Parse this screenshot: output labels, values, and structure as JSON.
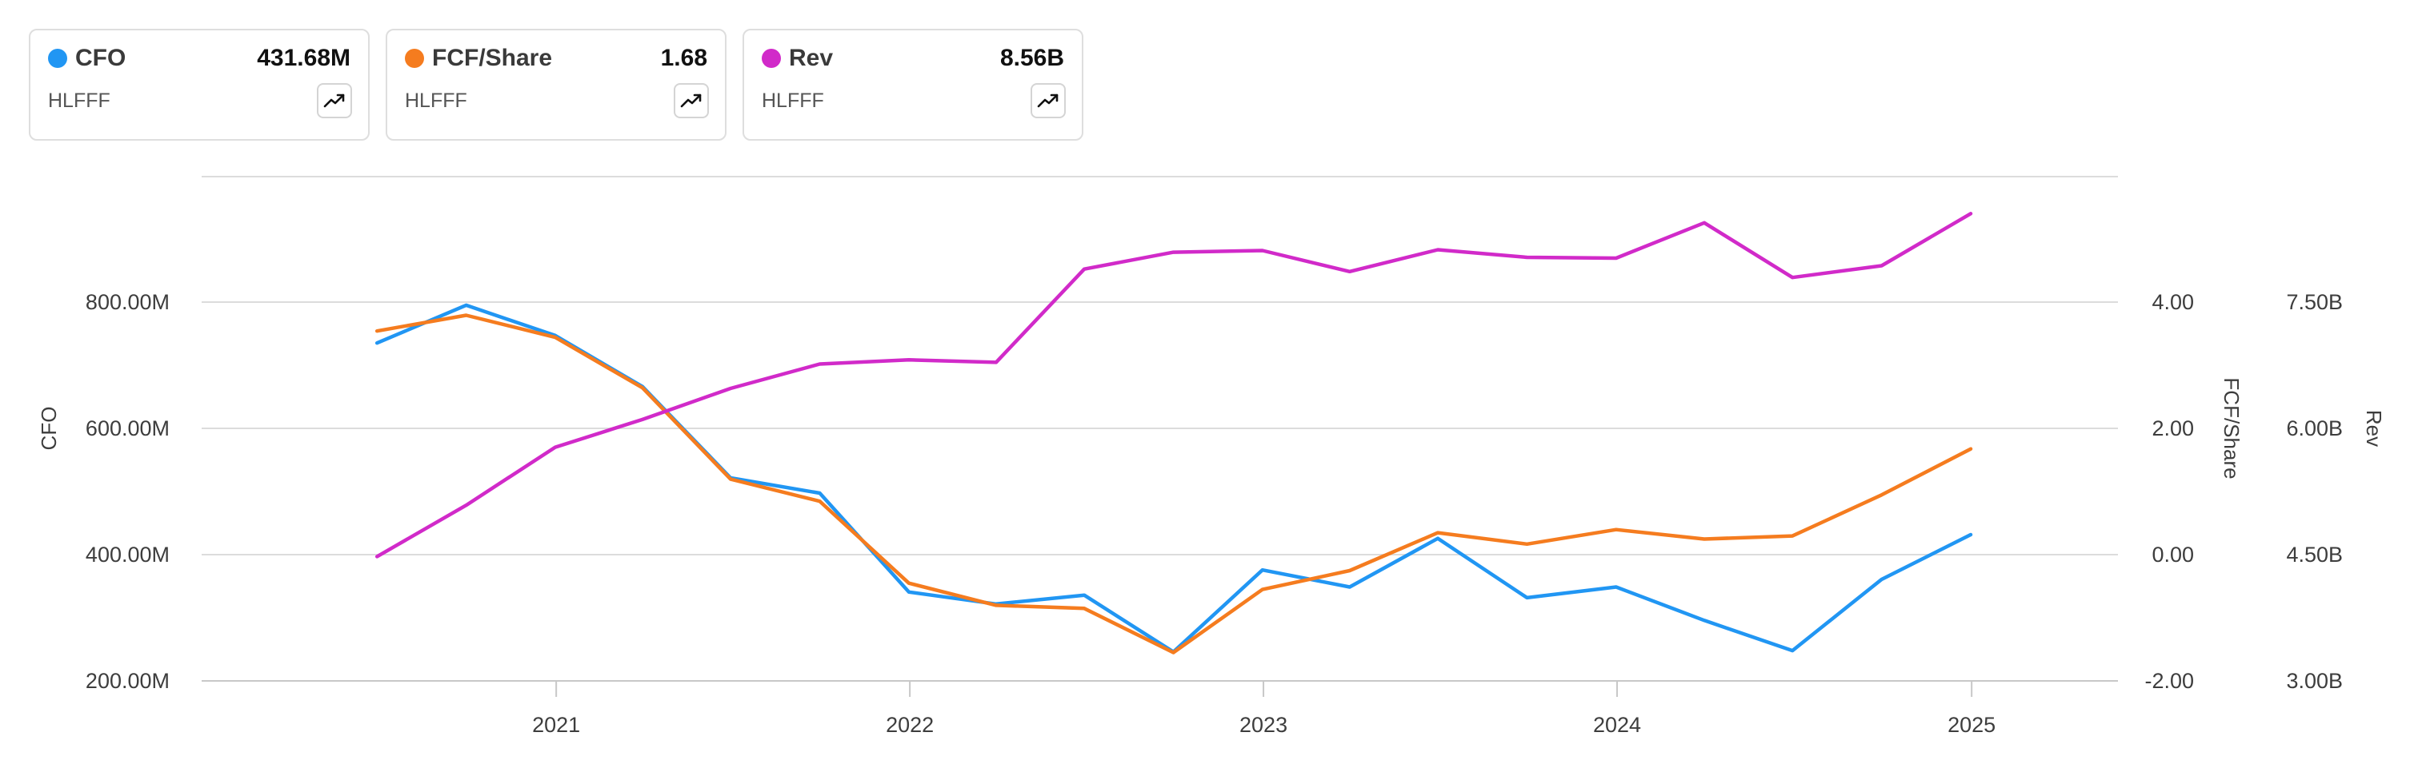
{
  "legend_cards": [
    {
      "name": "CFO",
      "value": "431.68M",
      "ticker": "HLFFF",
      "color": "#2196f3"
    },
    {
      "name": "FCF/Share",
      "value": "1.68",
      "ticker": "HLFFF",
      "color": "#f57c1f"
    },
    {
      "name": "Rev",
      "value": "8.56B",
      "ticker": "HLFFF",
      "color": "#d12ac9"
    }
  ],
  "chart_data": {
    "type": "line",
    "grid": true,
    "x_ticks": [
      "2021",
      "2022",
      "2023",
      "2024",
      "2025"
    ],
    "x": [
      "2020-06-30",
      "2020-09-30",
      "2020-12-31",
      "2021-03-31",
      "2021-06-30",
      "2021-09-30",
      "2021-12-31",
      "2022-03-31",
      "2022-06-30",
      "2022-09-30",
      "2022-12-31",
      "2023-03-31",
      "2023-06-30",
      "2023-09-30",
      "2023-12-31",
      "2024-03-31",
      "2024-06-30",
      "2024-09-30",
      "2024-12-31"
    ],
    "axes": {
      "left": {
        "label": "CFO",
        "ticks": [
          "200.00M",
          "400.00M",
          "600.00M",
          "800.00M"
        ],
        "ylim": [
          200,
          1000
        ]
      },
      "right1": {
        "label": "FCF/Share",
        "ticks": [
          "-2.00",
          "0.00",
          "2.00",
          "4.00"
        ],
        "ylim": [
          -2,
          6
        ]
      },
      "right2": {
        "label": "Rev",
        "ticks": [
          "3.00B",
          "4.50B",
          "6.00B",
          "7.50B"
        ],
        "ylim": [
          3.0,
          9.0
        ]
      }
    },
    "series": [
      {
        "name": "CFO",
        "axis": "left",
        "color": "#2196f3",
        "values": [
          736,
          796,
          748,
          667,
          522,
          498,
          341,
          322,
          336,
          246,
          376,
          349,
          426,
          332,
          349,
          296,
          248,
          361,
          432
        ]
      },
      {
        "name": "FCF/Share",
        "axis": "right1",
        "color": "#f57c1f",
        "values": [
          3.55,
          3.8,
          3.45,
          2.65,
          1.2,
          0.85,
          -0.45,
          -0.8,
          -0.85,
          -1.55,
          -0.55,
          -0.25,
          0.35,
          0.17,
          0.4,
          0.25,
          0.3,
          0.95,
          1.68
        ]
      },
      {
        "name": "Rev",
        "axis": "right2",
        "color": "#d12ac9",
        "values": [
          4.48,
          5.09,
          5.78,
          6.11,
          6.48,
          6.77,
          6.82,
          6.79,
          7.9,
          8.1,
          8.12,
          7.87,
          8.13,
          8.04,
          8.03,
          8.45,
          7.8,
          7.94,
          8.56
        ]
      }
    ]
  }
}
